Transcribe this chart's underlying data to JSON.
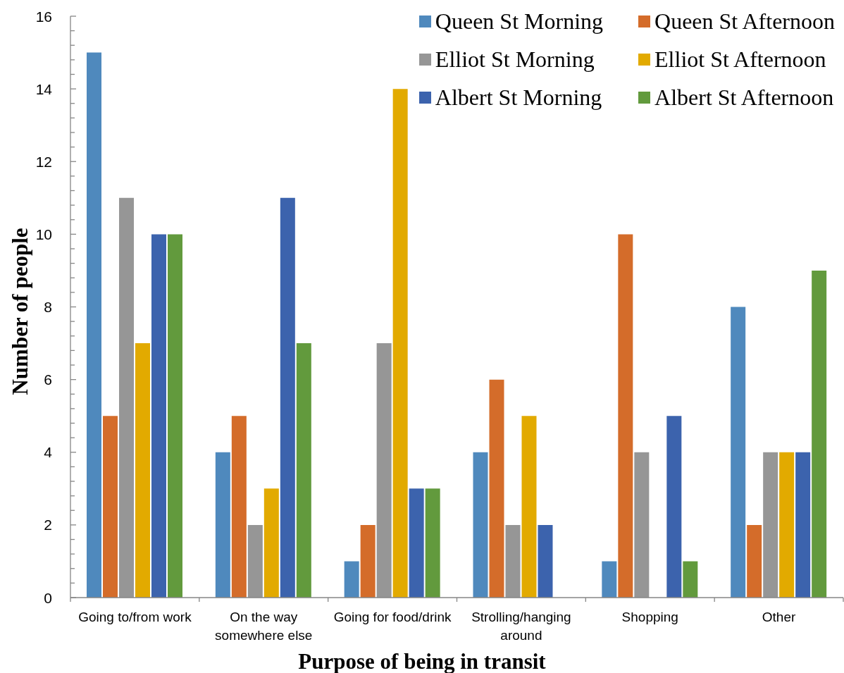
{
  "chart_data": {
    "type": "bar",
    "xlabel": "Purpose of being in transit",
    "ylabel": "Number of people",
    "categories": [
      "Going to/from work",
      "On the way somewhere else",
      "Going for food/drink",
      "Strolling/hanging around",
      "Shopping",
      "Other"
    ],
    "series": [
      {
        "name": "Queen St Morning",
        "color": "#4f89bd",
        "values": [
          15,
          4,
          1,
          4,
          1,
          8
        ]
      },
      {
        "name": "Queen St Afternoon",
        "color": "#d46c2a",
        "values": [
          5,
          5,
          2,
          6,
          10,
          2
        ]
      },
      {
        "name": "Elliot St Morning",
        "color": "#969696",
        "values": [
          11,
          2,
          7,
          2,
          4,
          4
        ]
      },
      {
        "name": "Elliot St Afternoon",
        "color": "#e2aa00",
        "values": [
          7,
          3,
          14,
          5,
          0,
          4
        ]
      },
      {
        "name": "Albert St Morning",
        "color": "#3c63ad",
        "values": [
          10,
          11,
          3,
          2,
          5,
          4
        ]
      },
      {
        "name": "Albert St Afternoon",
        "color": "#629a3d",
        "values": [
          10,
          7,
          3,
          0,
          1,
          9
        ]
      }
    ],
    "ylim": [
      0,
      16
    ],
    "yticks": [
      0,
      {
        "value": 0.4,
        "label": null
      },
      {
        "value": 0.8,
        "label": null
      },
      {
        "value": 1.2,
        "label": null
      },
      {
        "value": 1.6,
        "label": null
      },
      2,
      {
        "value": 2.4,
        "label": null
      },
      {
        "value": 2.8,
        "label": null
      },
      {
        "value": 3.2,
        "label": null
      },
      {
        "value": 3.6,
        "label": null
      },
      4,
      {
        "value": 4.4,
        "label": null
      },
      {
        "value": 4.8,
        "label": null
      },
      {
        "value": 5.2,
        "label": null
      },
      {
        "value": 5.6,
        "label": null
      },
      6,
      {
        "value": 6.4,
        "label": null
      },
      {
        "value": 6.8,
        "label": null
      },
      {
        "value": 7.2,
        "label": null
      },
      {
        "value": 7.6,
        "label": null
      },
      8,
      {
        "value": 8.4,
        "label": null
      },
      {
        "value": 8.8,
        "label": null
      },
      {
        "value": 9.2,
        "label": null
      },
      {
        "value": 9.6,
        "label": null
      },
      10,
      {
        "value": 10.4,
        "label": null
      },
      {
        "value": 10.8,
        "label": null
      },
      {
        "value": 11.2,
        "label": null
      },
      {
        "value": 11.6,
        "label": null
      },
      12,
      {
        "value": 12.4,
        "label": null
      },
      {
        "value": 12.8,
        "label": null
      },
      {
        "value": 13.2,
        "label": null
      },
      {
        "value": 13.6,
        "label": null
      },
      14,
      {
        "value": 14.4,
        "label": null
      },
      {
        "value": 14.8,
        "label": null
      },
      {
        "value": 15.2,
        "label": null
      },
      {
        "value": 15.6,
        "label": null
      },
      16
    ],
    "legend": "top right"
  }
}
